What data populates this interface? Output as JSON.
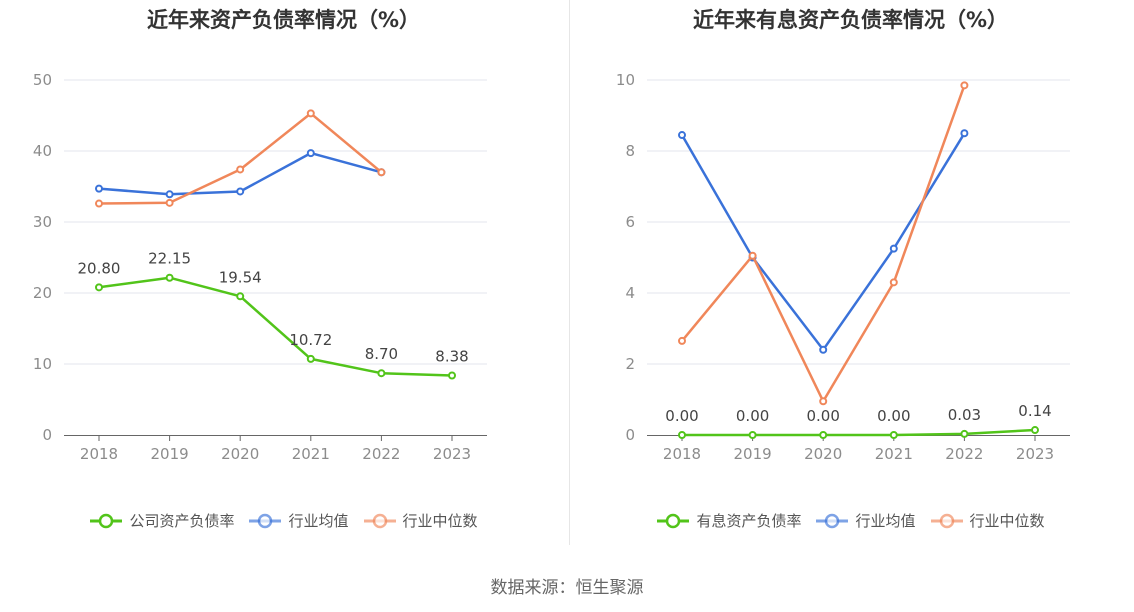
{
  "source": "数据来源：恒生聚源",
  "chart_data": [
    {
      "type": "line",
      "title": "近年来资产负债率情况（%）",
      "categories": [
        "2018",
        "2019",
        "2020",
        "2021",
        "2022",
        "2023"
      ],
      "ylim": [
        0,
        50
      ],
      "yticks": [
        0,
        10,
        20,
        30,
        40,
        50
      ],
      "grid": true,
      "legend_position": "bottom",
      "series": [
        {
          "name": "公司资产负债率",
          "color": "#52c41a",
          "values": [
            20.8,
            22.15,
            19.54,
            10.72,
            8.7,
            8.38
          ],
          "labels": [
            "20.80",
            "22.15",
            "19.54",
            "10.72",
            "8.70",
            "8.38"
          ]
        },
        {
          "name": "行业均值",
          "color": "#3a72d9",
          "values": [
            34.7,
            33.9,
            34.3,
            39.7,
            37.0,
            null
          ]
        },
        {
          "name": "行业中位数",
          "color": "#f0875a",
          "values": [
            32.6,
            32.7,
            37.4,
            45.3,
            37.0,
            null
          ]
        }
      ]
    },
    {
      "type": "line",
      "title": "近年来有息资产负债率情况（%）",
      "categories": [
        "2018",
        "2019",
        "2020",
        "2021",
        "2022",
        "2023"
      ],
      "ylim": [
        0,
        10
      ],
      "yticks": [
        0,
        2,
        4,
        6,
        8,
        10
      ],
      "grid": true,
      "legend_position": "bottom",
      "series": [
        {
          "name": "有息资产负债率",
          "color": "#52c41a",
          "values": [
            0.0,
            0.0,
            0.0,
            0.0,
            0.03,
            0.14
          ],
          "labels": [
            "0.00",
            "0.00",
            "0.00",
            "0.00",
            "0.03",
            "0.14"
          ]
        },
        {
          "name": "行业均值",
          "color": "#3a72d9",
          "values": [
            8.45,
            5.0,
            2.4,
            5.25,
            8.5,
            null
          ]
        },
        {
          "name": "行业中位数",
          "color": "#f0875a",
          "values": [
            2.65,
            5.05,
            0.95,
            4.3,
            9.85,
            null
          ]
        }
      ]
    }
  ]
}
